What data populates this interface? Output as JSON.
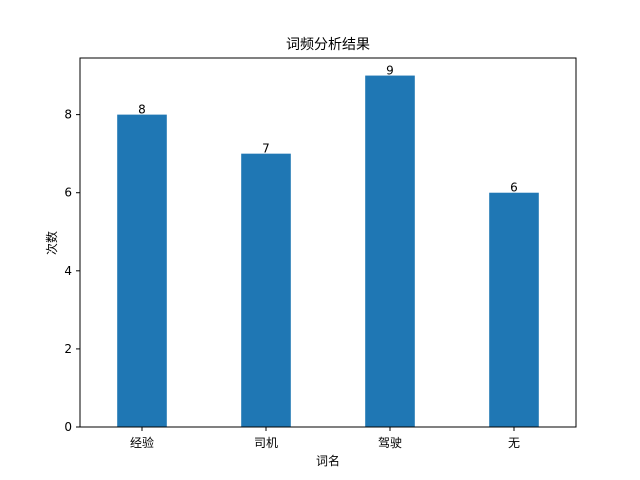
{
  "chart_data": {
    "type": "bar",
    "title": "词频分析结果",
    "xlabel": "词名",
    "ylabel": "次数",
    "categories": [
      "经验",
      "司机",
      "驾驶",
      "无"
    ],
    "values": [
      8,
      7,
      9,
      6
    ],
    "data_labels": [
      "8",
      "7",
      "9",
      "6"
    ],
    "yticks": [
      0,
      2,
      4,
      6,
      8
    ],
    "ytick_labels": [
      "0",
      "2",
      "4",
      "6",
      "8"
    ],
    "ylim": [
      0,
      9.45
    ],
    "bar_color": "#1f77b4",
    "grid": false,
    "legend": "none"
  }
}
